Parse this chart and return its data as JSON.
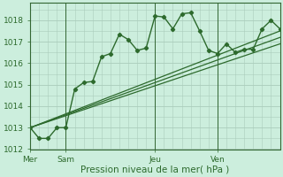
{
  "background_color": "#cceedd",
  "grid_color": "#aaccbb",
  "line_color": "#2d6a2d",
  "spine_color": "#336633",
  "title": "Pression niveau de la mer( hPa )",
  "ylim": [
    1012,
    1018.8
  ],
  "yticks": [
    1012,
    1013,
    1014,
    1015,
    1016,
    1017,
    1018
  ],
  "day_labels": [
    "Mer",
    "Sam",
    "Jeu",
    "Ven"
  ],
  "day_positions": [
    0,
    4,
    14,
    21
  ],
  "xlim": [
    0,
    28
  ],
  "series1_x": [
    0,
    1,
    2,
    3,
    4,
    5,
    6,
    7,
    8,
    9,
    10,
    11,
    12,
    13,
    14,
    15,
    16,
    17,
    18,
    19,
    20,
    21,
    22,
    23,
    24,
    25,
    26,
    27,
    28
  ],
  "series1_y": [
    1013.0,
    1012.5,
    1012.5,
    1013.0,
    1013.0,
    1014.8,
    1015.1,
    1015.15,
    1016.3,
    1016.45,
    1017.35,
    1017.1,
    1016.6,
    1016.7,
    1018.2,
    1018.15,
    1017.6,
    1018.3,
    1018.35,
    1017.5,
    1016.6,
    1016.45,
    1016.9,
    1016.5,
    1016.65,
    1016.65,
    1017.6,
    1018.0,
    1017.6
  ],
  "trend1_x": [
    0,
    28
  ],
  "trend1_y": [
    1013.0,
    1016.9
  ],
  "trend2_x": [
    0,
    28
  ],
  "trend2_y": [
    1013.0,
    1017.2
  ],
  "trend3_x": [
    0,
    28
  ],
  "trend3_y": [
    1013.0,
    1017.5
  ],
  "minor_per_major": 5,
  "tick_label_size": 6.5,
  "xlabel_size": 7.5
}
